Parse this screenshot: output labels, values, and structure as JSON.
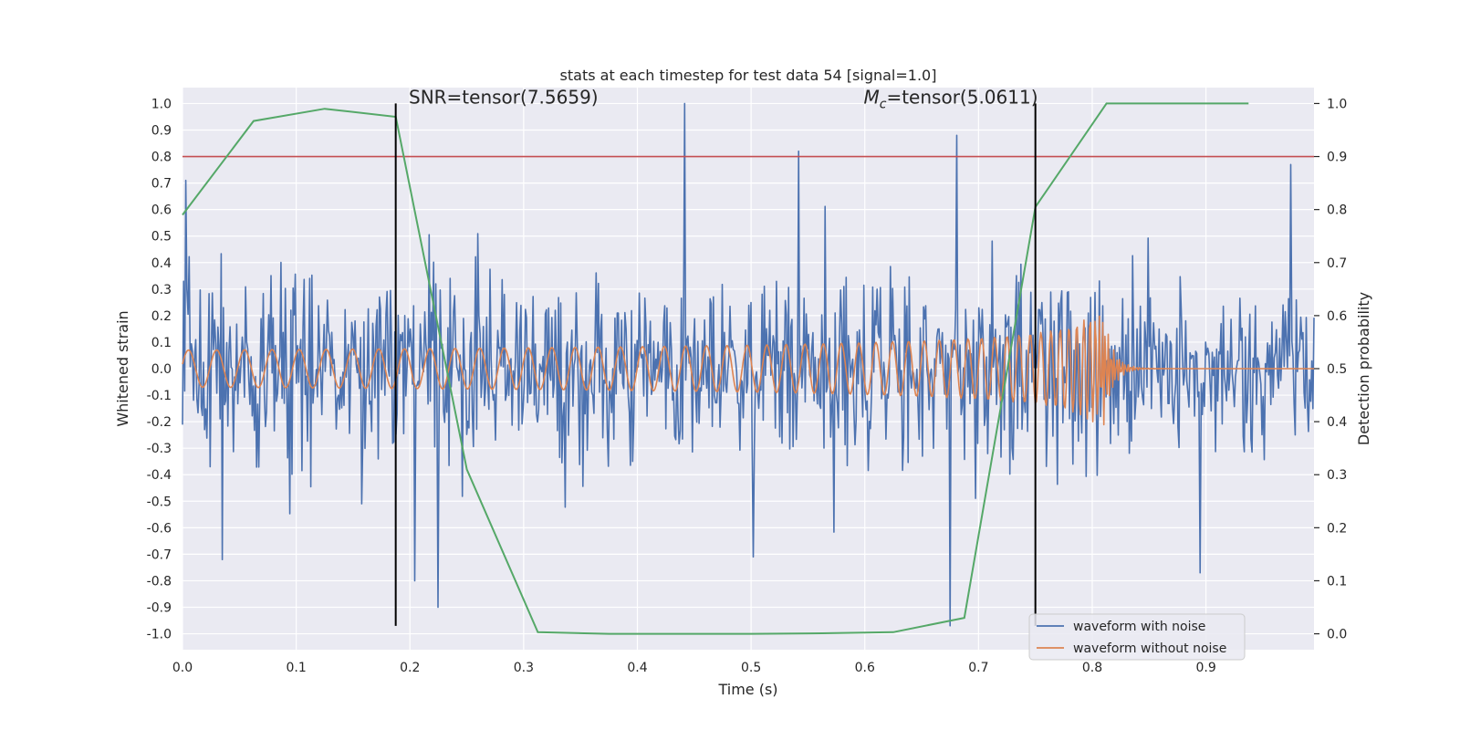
{
  "chart_data": {
    "type": "line",
    "title": "stats at each timestep for test data 54 [signal=1.0]",
    "xlabel": "Time (s)",
    "ylabel": "Whitened strain",
    "y2label": "Detection probability",
    "xlim": [
      0.0,
      0.995
    ],
    "ylim": [
      -1.06,
      1.06
    ],
    "y2lim": [
      -0.03,
      1.03
    ],
    "xticks": [
      0.0,
      0.1,
      0.2,
      0.3,
      0.4,
      0.5,
      0.6,
      0.7,
      0.8,
      0.9
    ],
    "yticks": [
      -1.0,
      -0.9,
      -0.8,
      -0.7,
      -0.6,
      -0.5,
      -0.4,
      -0.3,
      -0.2,
      -0.1,
      0.0,
      0.1,
      0.2,
      0.3,
      0.4,
      0.5,
      0.6,
      0.7,
      0.8,
      0.9,
      1.0
    ],
    "y2ticks": [
      0.0,
      0.1,
      0.2,
      0.3,
      0.4,
      0.5,
      0.6,
      0.7,
      0.8,
      0.9,
      1.0
    ],
    "grid": true,
    "legend_position": "bottom-right",
    "threshold": {
      "value": 0.9,
      "axis": "right",
      "color": "#c44e52"
    },
    "vlines": [
      {
        "x": 0.1875,
        "color": "#000000"
      },
      {
        "x": 0.75,
        "color": "#000000"
      }
    ],
    "annotations": [
      {
        "text": "SNR=tensor(7.5659)",
        "x": 0.199,
        "y": 1.0
      },
      {
        "prefix": "M",
        "subscript": "c",
        "text": "=tensor(5.0611)",
        "x": 0.599,
        "y": 1.0
      }
    ],
    "detection_probability": {
      "name": "detection probability",
      "color": "#55a868",
      "x": [
        0.0,
        0.0625,
        0.125,
        0.1875,
        0.25,
        0.3125,
        0.375,
        0.4375,
        0.5,
        0.5625,
        0.625,
        0.6875,
        0.75,
        0.8125,
        0.875,
        0.9375
      ],
      "y": [
        0.79,
        0.967,
        0.99,
        0.975,
        0.31,
        0.003,
        0.0,
        0.0,
        0.0,
        0.001,
        0.003,
        0.03,
        0.805,
        1.0,
        1.0,
        1.0
      ]
    },
    "series": [
      {
        "name": "waveform with noise",
        "color": "#4c72b0",
        "n_points": 1024,
        "description": "whitened noisy strain, amplitude mostly within +/-0.6, peaks near 1.0 at t=0.44, 0.88 at t=0.68, 0.82 at t=0.54, troughs to -0.97 at t=0.675, -0.9 at t=0.225"
      },
      {
        "name": "waveform without noise",
        "color": "#dd8452",
        "n_points": 1024,
        "description": "chirp: amplitude ~0.07 rising to ~0.25 near merger at t=0.81, frequency increasing, ringdown to 0 after t~0.84"
      }
    ],
    "noise_extremes": [
      {
        "x": 0.442,
        "y": 1.0
      },
      {
        "x": 0.681,
        "y": 0.88
      },
      {
        "x": 0.542,
        "y": 0.82
      },
      {
        "x": 0.975,
        "y": 0.77
      },
      {
        "x": 0.003,
        "y": 0.71
      },
      {
        "x": 0.675,
        "y": -0.97
      },
      {
        "x": 0.225,
        "y": -0.9
      },
      {
        "x": 0.204,
        "y": -0.8
      },
      {
        "x": 0.035,
        "y": -0.72
      },
      {
        "x": 0.502,
        "y": -0.71
      },
      {
        "x": 0.895,
        "y": -0.77
      }
    ]
  }
}
